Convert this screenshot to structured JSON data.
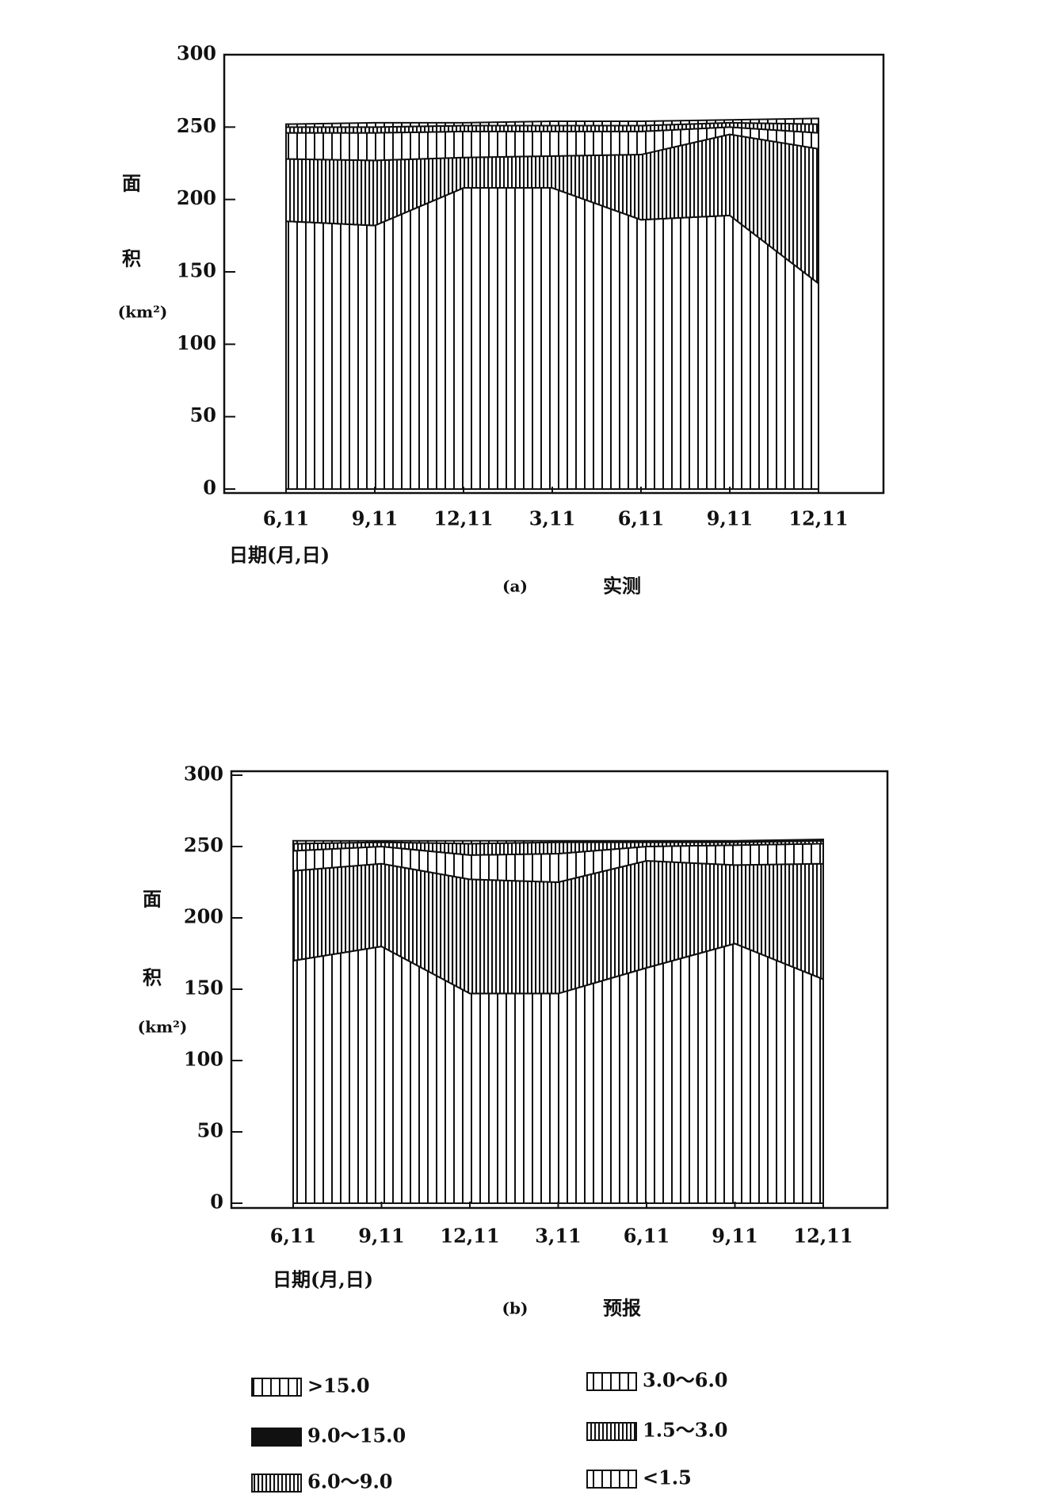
{
  "chart_data": [
    {
      "type": "stacked-area",
      "y_label_lines": [
        "面",
        "积",
        "(km²)"
      ],
      "x_label": "日期(月,日)",
      "caption_tag": "(a)",
      "caption": "实测",
      "categories": [
        "6,11",
        "9,11",
        "12,11",
        "3,11",
        "6,11",
        "9,11",
        "12,11"
      ],
      "ylim": [
        0,
        300
      ],
      "yticks": [
        0,
        50,
        100,
        150,
        200,
        250,
        300
      ],
      "series": [
        {
          "name": ">15.0",
          "color": "#111111",
          "hatch": "sparse",
          "values": [
            185,
            182,
            208,
            208,
            186,
            189,
            142
          ]
        },
        {
          "name": "9.0～15.0",
          "color": "#111111",
          "hatch": "solid",
          "values": [
            0,
            0,
            0,
            0,
            0,
            0,
            0
          ]
        },
        {
          "name": "6.0～9.0",
          "color": "#111111",
          "hatch": "dense",
          "values": [
            43,
            45,
            21,
            22,
            45,
            56,
            93
          ]
        },
        {
          "name": "3.0～6.0",
          "color": "#111111",
          "hatch": "sparse",
          "values": [
            18,
            19,
            18,
            17,
            16,
            5,
            11
          ]
        },
        {
          "name": "1.5～3.0",
          "color": "#111111",
          "hatch": "dense",
          "values": [
            4,
            4,
            4,
            4,
            4,
            3,
            6
          ]
        },
        {
          "name": "<1.5",
          "color": "#111111",
          "hatch": "sparse",
          "values": [
            2,
            3,
            2,
            3,
            3,
            2,
            4
          ]
        }
      ]
    },
    {
      "type": "stacked-area",
      "y_label_lines": [
        "面",
        "积",
        "(km²)"
      ],
      "x_label": "日期(月,日)",
      "caption_tag": "(b)",
      "caption": "预报",
      "categories": [
        "6,11",
        "9,11",
        "12,11",
        "3,11",
        "6,11",
        "9,11",
        "12,11"
      ],
      "ylim": [
        0,
        300
      ],
      "yticks": [
        0,
        50,
        100,
        150,
        200,
        250,
        300
      ],
      "series": [
        {
          "name": ">15.0",
          "color": "#111111",
          "hatch": "sparse",
          "values": [
            170,
            180,
            147,
            147,
            165,
            182,
            157
          ]
        },
        {
          "name": "9.0～15.0",
          "color": "#111111",
          "hatch": "solid",
          "values": [
            0,
            0,
            0,
            0,
            0,
            0,
            0
          ]
        },
        {
          "name": "6.0～9.0",
          "color": "#111111",
          "hatch": "dense",
          "values": [
            63,
            58,
            80,
            78,
            75,
            55,
            81
          ]
        },
        {
          "name": "3.0～6.0",
          "color": "#111111",
          "hatch": "sparse",
          "values": [
            14,
            12,
            17,
            20,
            10,
            14,
            14
          ]
        },
        {
          "name": "1.5～3.0",
          "color": "#111111",
          "hatch": "dense",
          "values": [
            5,
            3,
            8,
            8,
            3,
            2,
            2
          ]
        },
        {
          "name": "<1.5",
          "color": "#111111",
          "hatch": "sparse",
          "values": [
            2,
            1,
            2,
            1,
            1,
            1,
            1
          ]
        }
      ]
    }
  ]
}
